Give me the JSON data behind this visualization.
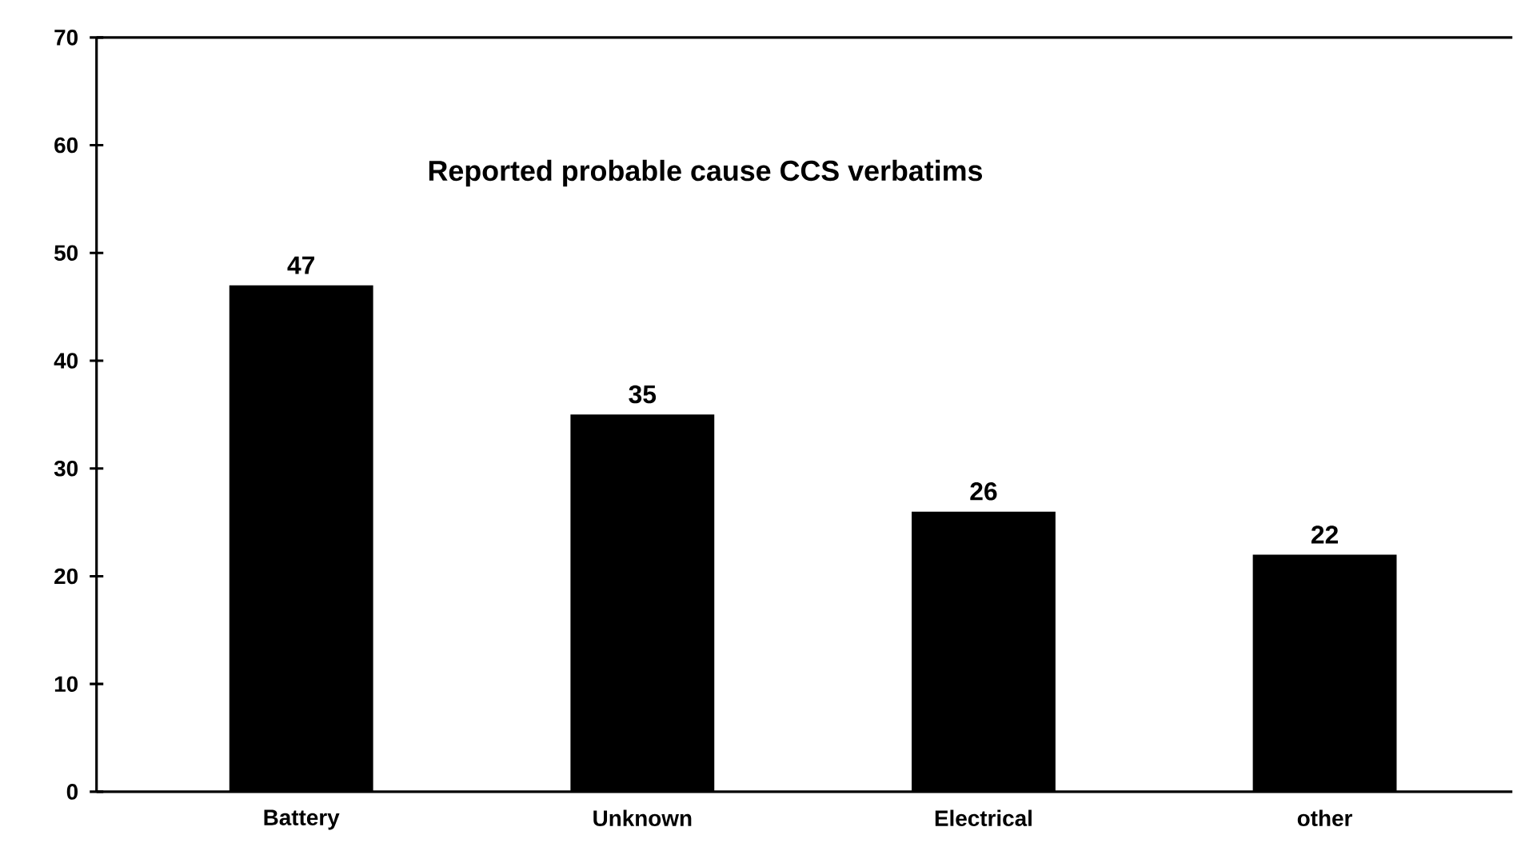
{
  "chart_data": {
    "type": "bar",
    "title": "Reported probable cause CCS verbatims",
    "categories": [
      "Battery",
      "Unknown",
      "Electrical",
      "other"
    ],
    "values": [
      47,
      35,
      26,
      22
    ],
    "color": "#000000",
    "ylim": [
      0,
      70
    ],
    "yticks": [
      0,
      10,
      20,
      30,
      40,
      50,
      60,
      70
    ],
    "data_labels": true
  }
}
